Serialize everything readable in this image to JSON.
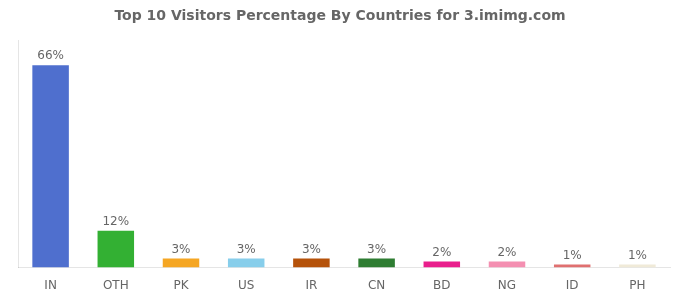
{
  "chart_data": {
    "type": "bar",
    "title": "Top 10 Visitors Percentage By Countries for 3.imimg.com",
    "categories": [
      "IN",
      "OTH",
      "PK",
      "US",
      "IR",
      "CN",
      "BD",
      "NG",
      "ID",
      "PH"
    ],
    "values": [
      66,
      12,
      3,
      3,
      3,
      3,
      2,
      2,
      1,
      1
    ],
    "value_labels": [
      "66%",
      "12%",
      "3%",
      "3%",
      "3%",
      "3%",
      "2%",
      "2%",
      "1%",
      "1%"
    ],
    "colors": [
      "#4f6fce",
      "#33b033",
      "#f5a623",
      "#87ceeb",
      "#b5520a",
      "#2e7d32",
      "#e91e8c",
      "#f48fb1",
      "#e07070",
      "#f0ead8"
    ],
    "ylim": [
      0,
      74
    ],
    "data_labels": true,
    "tick_labels": "x",
    "grid": false
  }
}
